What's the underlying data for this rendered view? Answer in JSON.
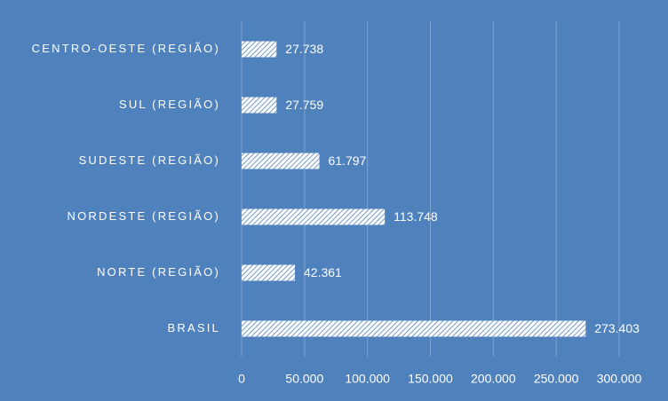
{
  "chart_data": {
    "type": "bar",
    "orientation": "horizontal",
    "categories": [
      "CENTRO-OESTE (REGIÃO)",
      "SUL (REGIÃO)",
      "SUDESTE (REGIÃO)",
      "NORDESTE (REGIÃO)",
      "NORTE (REGIÃO)",
      "BRASIL"
    ],
    "values": [
      27738,
      27759,
      61797,
      113748,
      42361,
      273403
    ],
    "value_labels": [
      "27.738",
      "27.759",
      "61.797",
      "113.748",
      "42.361",
      "273.403"
    ],
    "color": "#ffffff",
    "pattern": "hatch",
    "xlim": [
      0,
      300000
    ],
    "xticks": [
      0,
      {
        "value": 50000,
        "label": "50.000"
      },
      {
        "value": 100000,
        "label": "100.000"
      },
      {
        "value": 150000,
        "label": "150.000"
      },
      {
        "value": 200000,
        "label": "200.000"
      },
      {
        "value": 250000,
        "label": "250.000"
      },
      {
        "value": 300000,
        "label": "300.000"
      }
    ],
    "grid": true
  }
}
